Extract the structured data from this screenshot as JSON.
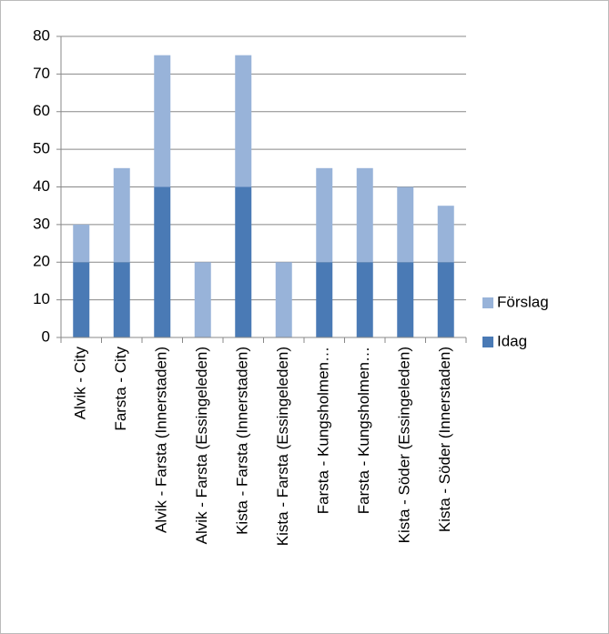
{
  "chart_data": {
    "type": "stacked-bar",
    "categories": [
      "Alvik - City",
      "Farsta - City",
      "Alvik - Farsta (Innerstaden)",
      "Alvik - Farsta (Essingeleden)",
      "Kista - Farsta (Innerstaden)",
      "Kista - Farsta (Essingeleden)",
      "Farsta - Kungsholmen…",
      "Farsta - Kungsholmen…",
      "Kista - Söder (Essingeleden)",
      "Kista - Söder (Innerstaden)"
    ],
    "series": [
      {
        "name": "Idag",
        "color": "#4a7ab5",
        "values": [
          20,
          20,
          40,
          0,
          40,
          0,
          20,
          20,
          20,
          20
        ]
      },
      {
        "name": "Förslag",
        "color": "#98b3d9",
        "values": [
          10,
          25,
          35,
          20,
          35,
          20,
          25,
          25,
          20,
          15
        ]
      }
    ],
    "ylim": [
      0,
      80
    ],
    "yticks": [
      0,
      10,
      20,
      30,
      40,
      50,
      60,
      70,
      80
    ],
    "grid": true,
    "legend": "right"
  }
}
